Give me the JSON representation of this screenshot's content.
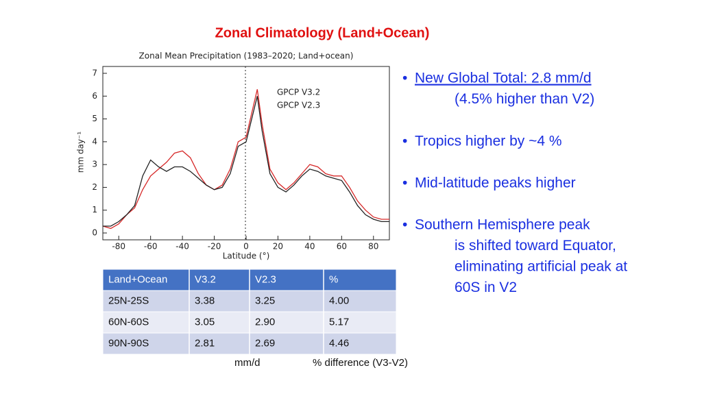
{
  "title": "Zonal Climatology    (Land+Ocean)",
  "chart_data": {
    "type": "line",
    "title": "Zonal Mean Precipitation (1983–2020; Land+ocean)",
    "xlabel": "Latitude (°)",
    "ylabel": "mm day⁻¹",
    "x": [
      -90,
      -85,
      -80,
      -75,
      -70,
      -65,
      -60,
      -55,
      -50,
      -45,
      -40,
      -35,
      -30,
      -25,
      -20,
      -15,
      -10,
      -5,
      0,
      7,
      10,
      15,
      20,
      25,
      30,
      35,
      40,
      45,
      50,
      55,
      60,
      65,
      70,
      75,
      80,
      85,
      90
    ],
    "series": [
      {
        "name": "GPCP V3.2",
        "color": "#d62828",
        "values": [
          0.3,
          0.2,
          0.4,
          0.8,
          1.1,
          1.9,
          2.5,
          2.8,
          3.1,
          3.5,
          3.6,
          3.3,
          2.6,
          2.1,
          1.9,
          2.1,
          2.8,
          4.0,
          4.2,
          6.3,
          4.8,
          2.8,
          2.2,
          1.9,
          2.2,
          2.6,
          3.0,
          2.9,
          2.6,
          2.5,
          2.5,
          2.0,
          1.4,
          1.0,
          0.7,
          0.6,
          0.6
        ]
      },
      {
        "name": "GPCP V2.3",
        "color": "#222222",
        "values": [
          0.3,
          0.3,
          0.5,
          0.8,
          1.2,
          2.5,
          3.2,
          2.9,
          2.7,
          2.9,
          2.9,
          2.7,
          2.4,
          2.1,
          1.9,
          2.0,
          2.6,
          3.8,
          4.0,
          6.0,
          4.5,
          2.6,
          2.0,
          1.8,
          2.1,
          2.5,
          2.8,
          2.7,
          2.5,
          2.4,
          2.3,
          1.8,
          1.2,
          0.8,
          0.6,
          0.5,
          0.5
        ]
      }
    ],
    "xlim": [
      -90,
      90
    ],
    "xticks": [
      -80,
      -60,
      -40,
      -20,
      0,
      20,
      40,
      60,
      80
    ],
    "ylim": [
      -0.3,
      7.3
    ],
    "yticks": [
      0,
      1,
      2,
      3,
      4,
      5,
      6,
      7
    ],
    "legend": "upper center"
  },
  "table": {
    "header": [
      "Land+Ocean",
      "V3.2",
      "V2.3",
      "%"
    ],
    "rows": [
      [
        "25N-25S",
        "3.38",
        "3.25",
        "4.00"
      ],
      [
        "60N-60S",
        "3.05",
        "2.90",
        "5.17"
      ],
      [
        "90N-90S",
        "2.81",
        "2.69",
        "4.46"
      ]
    ],
    "notes": [
      "mm/d",
      "% difference (V3-V2)"
    ]
  },
  "bullets": [
    {
      "text": "New Global Total: 2.8 mm/d ",
      "lines": [
        "(4.5% higher than V2)"
      ]
    },
    {
      "text": "Tropics higher by ~4 %",
      "lines": []
    },
    {
      "text": "Mid-latitude peaks higher",
      "lines": []
    },
    {
      "text": "Southern Hemisphere peak",
      "lines": [
        "is shifted toward Equator,",
        "eliminating artificial peak at",
        "60S in V2"
      ]
    }
  ]
}
